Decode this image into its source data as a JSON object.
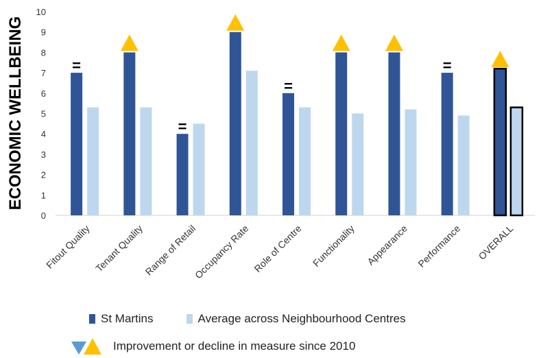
{
  "chart_data": {
    "type": "bar",
    "ylabel": "ECONOMIC WELLBEING",
    "ylim": [
      0,
      10
    ],
    "yticks": [
      "0",
      "1",
      "2",
      "3",
      "4",
      "5",
      "6",
      "7",
      "8",
      "9",
      "10"
    ],
    "categories": [
      "Fitout Quality",
      "Tenant Quality",
      "Range of Retail",
      "Occupancy Rate",
      "Role of Centre",
      "Functionality",
      "Appearance",
      "Performance",
      "OVERALL"
    ],
    "series": [
      {
        "name": "St Martins",
        "color": "#2f5597",
        "values": [
          7,
          8,
          4,
          9,
          6,
          8,
          8,
          7,
          7.2
        ]
      },
      {
        "name": "Average across Neighbourhood Centres",
        "color": "#bdd7ee",
        "values": [
          5.3,
          5.3,
          4.5,
          7.1,
          5.3,
          5.0,
          5.2,
          4.9,
          5.3
        ]
      }
    ],
    "markers": [
      "=",
      "up",
      "=",
      "up",
      "=",
      "up",
      "up",
      "=",
      "up"
    ],
    "marker_colors": {
      "up": "#ffc000",
      "down": "#5b9bd5"
    },
    "highlight_category": "OVERALL",
    "grid": false,
    "legend_position": "bottom"
  },
  "legend": {
    "series1_label": "St Martins",
    "series2_label": "Average across Neighbourhood Centres",
    "change_note": "Improvement or decline in measure since 2010"
  }
}
